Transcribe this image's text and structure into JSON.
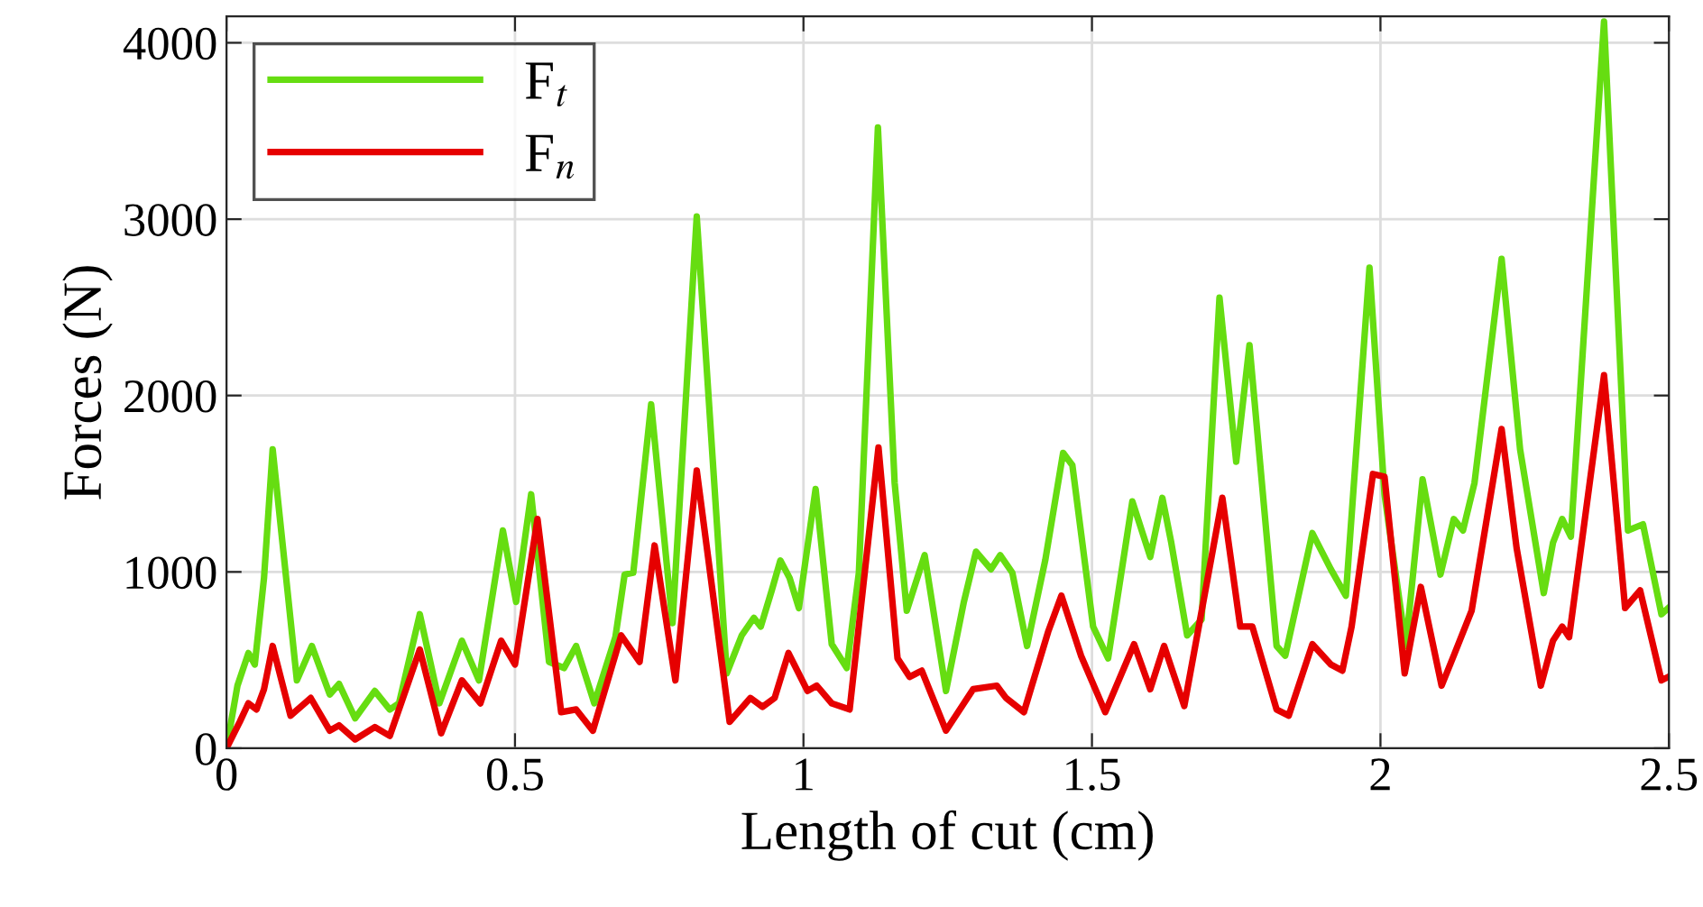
{
  "chart_data": {
    "type": "line",
    "xlabel": "Length of cut (cm)",
    "ylabel": "Forces (N)",
    "xlim": [
      0,
      2.5
    ],
    "xticks": [
      0,
      0.5,
      1,
      1.5,
      2,
      2.5
    ],
    "ylim": [
      0,
      4150
    ],
    "yticks": [
      0,
      1000,
      2000,
      3000,
      4000
    ],
    "grid": true,
    "legend": "top left",
    "line_style": "solid",
    "marker": "none",
    "series": [
      {
        "name": "F$_{t}$",
        "color": "#66dd11",
        "x": [
          0,
          0.019,
          0.038,
          0.049,
          0.065,
          0.08,
          0.122,
          0.148,
          0.179,
          0.195,
          0.223,
          0.257,
          0.283,
          0.299,
          0.335,
          0.369,
          0.408,
          0.4375,
          0.479,
          0.502,
          0.528,
          0.559,
          0.585,
          0.606,
          0.6375,
          0.674,
          0.69,
          0.705,
          0.736,
          0.773,
          0.815,
          0.867,
          0.893,
          0.914,
          0.926,
          0.945,
          0.96,
          0.976,
          0.992,
          1.021,
          1.049,
          1.075,
          1.096,
          1.129,
          1.158,
          1.179,
          1.21,
          1.247,
          1.278,
          1.299,
          1.325,
          1.341,
          1.362,
          1.3875,
          1.419,
          1.45,
          1.466,
          1.502,
          1.528,
          1.57,
          1.601,
          1.622,
          1.6375,
          1.665,
          1.69,
          1.721,
          1.75,
          1.773,
          1.82,
          1.835,
          1.882,
          1.914,
          1.94,
          1.981,
          2.007,
          2.044,
          2.073,
          2.104,
          2.127,
          2.143,
          2.163,
          2.21,
          2.242,
          2.283,
          2.299,
          2.315,
          2.33,
          2.3875,
          2.429,
          2.455,
          2.487,
          2.499
        ],
        "values": [
          0,
          355,
          540,
          475,
          965,
          1695,
          385,
          580,
          305,
          365,
          170,
          325,
          220,
          255,
          760,
          255,
          610,
          385,
          1235,
          830,
          1440,
          490,
          455,
          580,
          255,
          630,
          985,
          995,
          1950,
          710,
          3015,
          425,
          640,
          740,
          690,
          895,
          1065,
          965,
          795,
          1470,
          590,
          455,
          995,
          3520,
          1505,
          780,
          1095,
          325,
          830,
          1115,
          1015,
          1095,
          995,
          580,
          1065,
          1675,
          1605,
          690,
          510,
          1400,
          1085,
          1420,
          1165,
          640,
          730,
          2555,
          1625,
          2285,
          580,
          525,
          1220,
          1015,
          865,
          2725,
          1440,
          580,
          1525,
          985,
          1300,
          1235,
          1505,
          2775,
          1695,
          880,
          1165,
          1300,
          1200,
          4120,
          1235,
          1270,
          760,
          795
        ]
      },
      {
        "name": "F$_{n}$",
        "color": "#e60000",
        "x": [
          0,
          0.023,
          0.038,
          0.052,
          0.065,
          0.08,
          0.111,
          0.146,
          0.179,
          0.195,
          0.223,
          0.257,
          0.283,
          0.335,
          0.372,
          0.408,
          0.44,
          0.476,
          0.5,
          0.539,
          0.58,
          0.606,
          0.635,
          0.684,
          0.716,
          0.742,
          0.778,
          0.815,
          0.872,
          0.908,
          0.929,
          0.95,
          0.974,
          1.007,
          1.023,
          1.049,
          1.08,
          1.13,
          1.163,
          1.184,
          1.205,
          1.247,
          1.294,
          1.335,
          1.351,
          1.382,
          1.424,
          1.447,
          1.481,
          1.523,
          1.573,
          1.601,
          1.625,
          1.66,
          1.726,
          1.757,
          1.778,
          1.82,
          1.841,
          1.882,
          1.914,
          1.934,
          1.95,
          1.987,
          2.007,
          2.042,
          2.07,
          2.106,
          2.127,
          2.158,
          2.21,
          2.236,
          2.278,
          2.299,
          2.315,
          2.327,
          2.3875,
          2.424,
          2.45,
          2.487,
          2.499
        ],
        "values": [
          0,
          150,
          255,
          220,
          335,
          580,
          185,
          285,
          100,
          130,
          50,
          120,
          70,
          560,
          85,
          385,
          255,
          610,
          475,
          1300,
          205,
          220,
          100,
          640,
          490,
          1150,
          385,
          1575,
          150,
          285,
          235,
          285,
          540,
          325,
          355,
          255,
          220,
          1705,
          510,
          405,
          440,
          100,
          335,
          355,
          285,
          205,
          660,
          865,
          525,
          205,
          590,
          335,
          580,
          240,
          1420,
          690,
          690,
          220,
          185,
          590,
          475,
          440,
          690,
          1555,
          1540,
          425,
          915,
          355,
          525,
          780,
          1810,
          1135,
          355,
          610,
          690,
          630,
          2115,
          795,
          895,
          385,
          405
        ]
      }
    ]
  }
}
